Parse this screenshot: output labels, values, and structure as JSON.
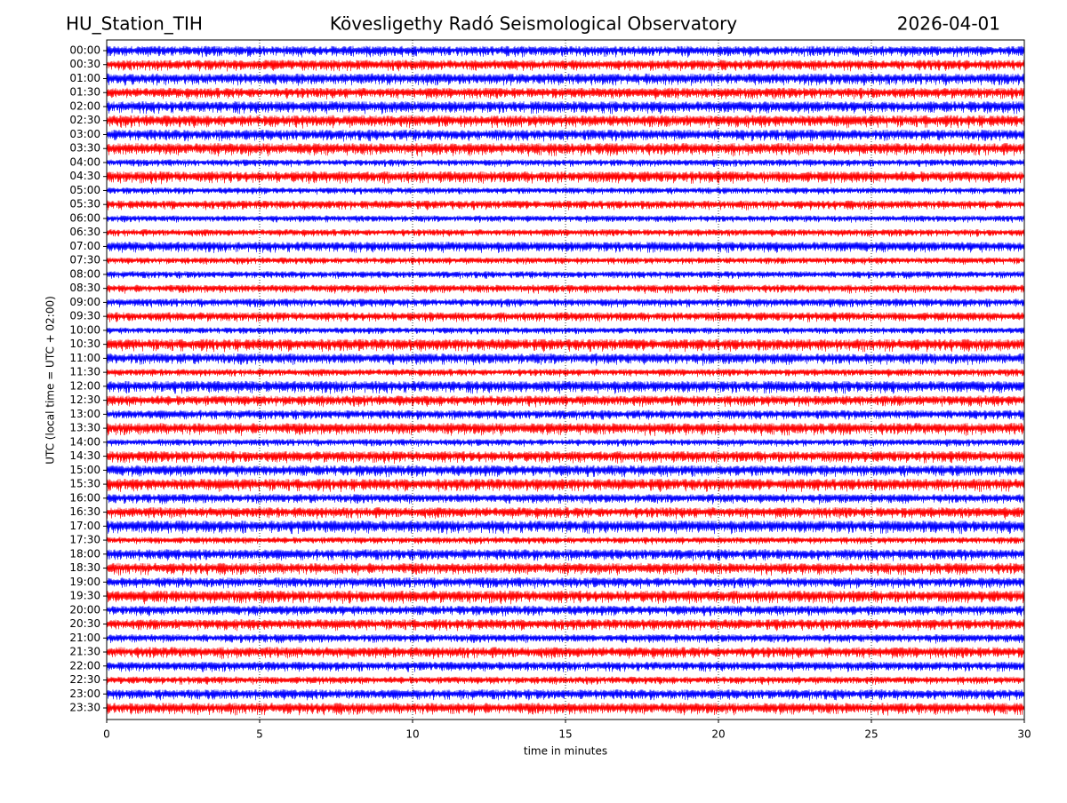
{
  "chart_data": {
    "type": "line",
    "station": "HU_Station_TIH",
    "title": "Kövesligethy Radó Seismological Observatory",
    "date": "2026-04-01",
    "xlabel": "time in minutes",
    "ylabel": "UTC (local time = UTC + 02:00)",
    "categories": [
      "00:00",
      "00:30",
      "01:00",
      "01:30",
      "02:00",
      "02:30",
      "03:00",
      "03:30",
      "04:00",
      "04:30",
      "05:00",
      "05:30",
      "06:00",
      "06:30",
      "07:00",
      "07:30",
      "08:00",
      "08:30",
      "09:00",
      "09:30",
      "10:00",
      "10:30",
      "11:00",
      "11:30",
      "12:00",
      "12:30",
      "13:00",
      "13:30",
      "14:00",
      "14:30",
      "15:00",
      "15:30",
      "16:00",
      "16:30",
      "17:00",
      "17:30",
      "18:00",
      "18:30",
      "19:00",
      "19:30",
      "20:00",
      "20:30",
      "21:00",
      "21:30",
      "22:00",
      "22:30",
      "23:00",
      "23:30"
    ],
    "colors": [
      "#0000ff",
      "#ff0000"
    ],
    "xlim": [
      0,
      30
    ],
    "xticks": [
      0,
      5,
      10,
      15,
      20,
      25,
      30
    ],
    "grid": true
  }
}
